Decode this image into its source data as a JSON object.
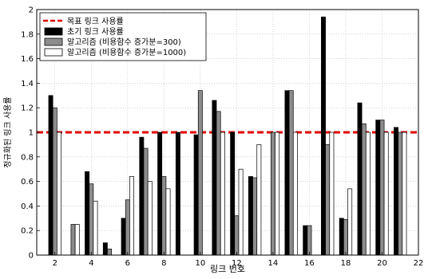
{
  "chart_data": {
    "type": "bar",
    "xlabel": "링크 번호",
    "ylabel": "정규화된 링크 사용률",
    "xlim": [
      1,
      22
    ],
    "ylim": [
      0,
      2
    ],
    "xticks": [
      2,
      4,
      6,
      8,
      10,
      12,
      14,
      16,
      18,
      20,
      22
    ],
    "yticks": [
      0,
      0.2,
      0.4,
      0.6,
      0.8,
      1,
      1.2,
      1.4,
      1.6,
      1.8,
      2
    ],
    "ytick_labels": [
      "0",
      "0.2",
      "0.4",
      "0.6",
      "0.8",
      "1",
      "1.2",
      "1.4",
      "1.6",
      "1.8",
      "2"
    ],
    "grid": true,
    "legend_position": "top-left",
    "categories": [
      2,
      3,
      4,
      5,
      6,
      7,
      8,
      9,
      10,
      11,
      12,
      13,
      14,
      15,
      16,
      17,
      18,
      19,
      20,
      21
    ],
    "reference_line": {
      "name": "목표 링크 사용률",
      "y": 1,
      "color": "#e00000"
    },
    "series": [
      {
        "name": "초기 링크 사용률",
        "color": "#000000",
        "values": [
          1.3,
          0,
          0.68,
          0.1,
          0.3,
          0.96,
          1.0,
          1.0,
          0.98,
          1.26,
          1.0,
          0.64,
          0,
          1.34,
          0.24,
          1.94,
          0.3,
          1.24,
          1.1,
          1.04
        ]
      },
      {
        "name": "알고리즘 (비용함수 증가분=300)",
        "color": "#8c8c8c",
        "values": [
          1.2,
          0.25,
          0.58,
          0.05,
          0.45,
          0.87,
          0.64,
          0,
          1.34,
          1.17,
          0.32,
          0.63,
          1.0,
          1.34,
          0.24,
          0.9,
          0.29,
          1.07,
          1.1,
          1.0
        ]
      },
      {
        "name": "알고리즘 (비용함수 증가분=1000)",
        "color": "#ffffff",
        "values": [
          1.0,
          0.25,
          0.44,
          0,
          0.64,
          0.6,
          0.54,
          0,
          0,
          1.0,
          0.7,
          0.9,
          1.0,
          1.0,
          0,
          1.0,
          0.54,
          1.0,
          1.0,
          1.0
        ]
      }
    ]
  }
}
